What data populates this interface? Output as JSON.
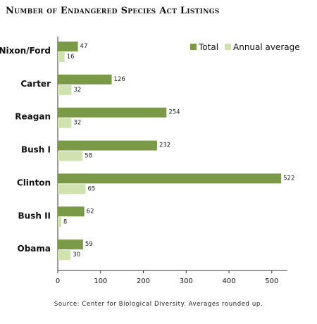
{
  "chart_data": {
    "type": "bar",
    "orientation": "horizontal",
    "title": "Number of Endangered Species Act Listings",
    "categories": [
      "Nixon/Ford",
      "Carter",
      "Reagan",
      "Bush I",
      "Clinton",
      "Bush II",
      "Obama"
    ],
    "series": [
      {
        "name": "Total",
        "color": "#7a9a48",
        "values": [
          47,
          126,
          254,
          232,
          522,
          62,
          59
        ]
      },
      {
        "name": "Annual average",
        "color": "#cfe2b0",
        "values": [
          16,
          32,
          32,
          58,
          65,
          8,
          30
        ]
      }
    ],
    "xlim": [
      0,
      530
    ],
    "xticks": [
      0,
      100,
      200,
      300,
      400,
      500
    ],
    "legend_position": "top-right",
    "grid": false
  },
  "source": "Source: Center for Biological Diversity. Averages rounded up."
}
